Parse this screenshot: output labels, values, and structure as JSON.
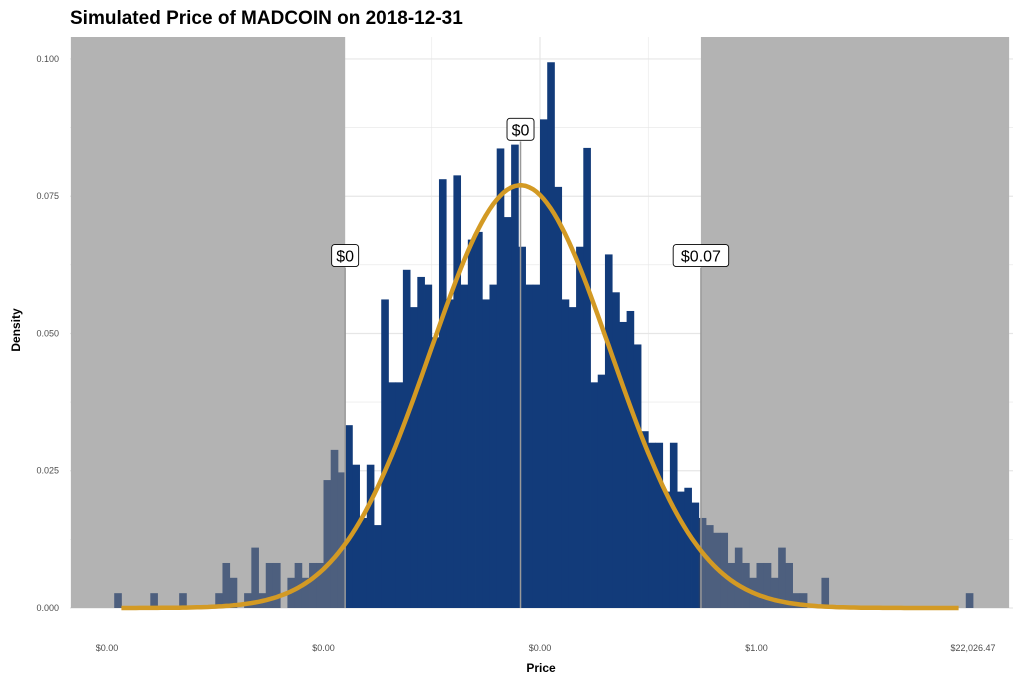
{
  "chart_data": {
    "type": "bar",
    "title": "Simulated Price of MADCOIN on 2018-12-31",
    "xlabel": "Price",
    "ylabel": "Density",
    "x_scale": "log",
    "xlim": [
      -1.0,
      11.0
    ],
    "ylim": [
      0,
      0.104
    ],
    "y_ticks": [
      {
        "value": 0.0,
        "label": "0.000"
      },
      {
        "value": 0.025,
        "label": "0.025"
      },
      {
        "value": 0.05,
        "label": "0.050"
      },
      {
        "value": 0.075,
        "label": "0.075"
      },
      {
        "value": 0.1,
        "label": "0.100"
      }
    ],
    "x_ticks": [
      {
        "value": -1,
        "label": "$0.00"
      },
      {
        "value": 2,
        "label": "$0.00"
      },
      {
        "value": 5,
        "label": "$0.00"
      },
      {
        "value": 8,
        "label": "$1.00"
      },
      {
        "value": 11,
        "label": "$22,026.47"
      }
    ],
    "grid": true,
    "shaded_regions": [
      {
        "from": -1.5,
        "to": 2.3
      },
      {
        "from": 7.23,
        "to": 11.5
      }
    ],
    "reference_lines": [
      {
        "x": 2.3,
        "label": "$0",
        "label_y": 0.062
      },
      {
        "x": 4.73,
        "label": "$0",
        "label_y": 0.085
      },
      {
        "x": 7.23,
        "label": "$0.07",
        "label_y": 0.062
      }
    ],
    "bin_width": 0.1,
    "histogram": [
      {
        "x": -0.9,
        "y": 0.0027
      },
      {
        "x": -0.4,
        "y": 0.0027
      },
      {
        "x": 0.0,
        "y": 0.0027
      },
      {
        "x": 0.5,
        "y": 0.0027
      },
      {
        "x": 0.6,
        "y": 0.0082
      },
      {
        "x": 0.7,
        "y": 0.0055
      },
      {
        "x": 0.9,
        "y": 0.0027
      },
      {
        "x": 1.0,
        "y": 0.011
      },
      {
        "x": 1.1,
        "y": 0.0027
      },
      {
        "x": 1.2,
        "y": 0.0082
      },
      {
        "x": 1.3,
        "y": 0.0082
      },
      {
        "x": 1.5,
        "y": 0.0055
      },
      {
        "x": 1.6,
        "y": 0.0082
      },
      {
        "x": 1.7,
        "y": 0.0055
      },
      {
        "x": 1.8,
        "y": 0.0082
      },
      {
        "x": 1.9,
        "y": 0.0082
      },
      {
        "x": 2.0,
        "y": 0.0233
      },
      {
        "x": 2.1,
        "y": 0.0288
      },
      {
        "x": 2.2,
        "y": 0.0247
      },
      {
        "x": 2.3,
        "y": 0.0333
      },
      {
        "x": 2.4,
        "y": 0.0261
      },
      {
        "x": 2.5,
        "y": 0.0164
      },
      {
        "x": 2.6,
        "y": 0.0261
      },
      {
        "x": 2.7,
        "y": 0.0151
      },
      {
        "x": 2.8,
        "y": 0.0562
      },
      {
        "x": 2.9,
        "y": 0.0411
      },
      {
        "x": 3.0,
        "y": 0.0411
      },
      {
        "x": 3.1,
        "y": 0.0616
      },
      {
        "x": 3.2,
        "y": 0.0548
      },
      {
        "x": 3.3,
        "y": 0.0603
      },
      {
        "x": 3.4,
        "y": 0.0589
      },
      {
        "x": 3.5,
        "y": 0.0493
      },
      {
        "x": 3.6,
        "y": 0.0781
      },
      {
        "x": 3.7,
        "y": 0.0562
      },
      {
        "x": 3.8,
        "y": 0.0788
      },
      {
        "x": 3.9,
        "y": 0.0589
      },
      {
        "x": 4.0,
        "y": 0.0671
      },
      {
        "x": 4.1,
        "y": 0.0685
      },
      {
        "x": 4.2,
        "y": 0.0562
      },
      {
        "x": 4.3,
        "y": 0.0589
      },
      {
        "x": 4.4,
        "y": 0.0837
      },
      {
        "x": 4.5,
        "y": 0.0712
      },
      {
        "x": 4.6,
        "y": 0.0844
      },
      {
        "x": 4.7,
        "y": 0.0658
      },
      {
        "x": 4.8,
        "y": 0.0589
      },
      {
        "x": 4.9,
        "y": 0.0589
      },
      {
        "x": 5.0,
        "y": 0.089
      },
      {
        "x": 5.1,
        "y": 0.0994
      },
      {
        "x": 5.2,
        "y": 0.0767
      },
      {
        "x": 5.3,
        "y": 0.0562
      },
      {
        "x": 5.4,
        "y": 0.0548
      },
      {
        "x": 5.5,
        "y": 0.0658
      },
      {
        "x": 5.6,
        "y": 0.0838
      },
      {
        "x": 5.7,
        "y": 0.0411
      },
      {
        "x": 5.8,
        "y": 0.0425
      },
      {
        "x": 5.9,
        "y": 0.0644
      },
      {
        "x": 6.0,
        "y": 0.0575
      },
      {
        "x": 6.1,
        "y": 0.0521
      },
      {
        "x": 6.2,
        "y": 0.0541
      },
      {
        "x": 6.3,
        "y": 0.048
      },
      {
        "x": 6.4,
        "y": 0.0322
      },
      {
        "x": 6.5,
        "y": 0.0301
      },
      {
        "x": 6.6,
        "y": 0.0301
      },
      {
        "x": 6.7,
        "y": 0.0212
      },
      {
        "x": 6.8,
        "y": 0.0301
      },
      {
        "x": 6.9,
        "y": 0.0212
      },
      {
        "x": 7.0,
        "y": 0.0219
      },
      {
        "x": 7.1,
        "y": 0.0192
      },
      {
        "x": 7.2,
        "y": 0.0164
      },
      {
        "x": 7.3,
        "y": 0.0151
      },
      {
        "x": 7.4,
        "y": 0.0137
      },
      {
        "x": 7.5,
        "y": 0.0137
      },
      {
        "x": 7.6,
        "y": 0.0082
      },
      {
        "x": 7.7,
        "y": 0.011
      },
      {
        "x": 7.8,
        "y": 0.0082
      },
      {
        "x": 7.9,
        "y": 0.0055
      },
      {
        "x": 8.0,
        "y": 0.0082
      },
      {
        "x": 8.1,
        "y": 0.0082
      },
      {
        "x": 8.2,
        "y": 0.0055
      },
      {
        "x": 8.3,
        "y": 0.011
      },
      {
        "x": 8.4,
        "y": 0.0082
      },
      {
        "x": 8.5,
        "y": 0.0027
      },
      {
        "x": 8.6,
        "y": 0.0027
      },
      {
        "x": 8.9,
        "y": 0.0055
      },
      {
        "x": 10.9,
        "y": 0.0027
      }
    ],
    "density_curve": {
      "mean": 4.73,
      "sd": 1.25,
      "x_range": [
        -0.8,
        10.8
      ]
    },
    "colors": {
      "bar": "#123b7a",
      "bar_shaded": "#263f6a",
      "curve": "#d39a24",
      "shade": "#b3b3b3",
      "grid": "#e6e6e6",
      "ref_line": "#999999"
    }
  }
}
